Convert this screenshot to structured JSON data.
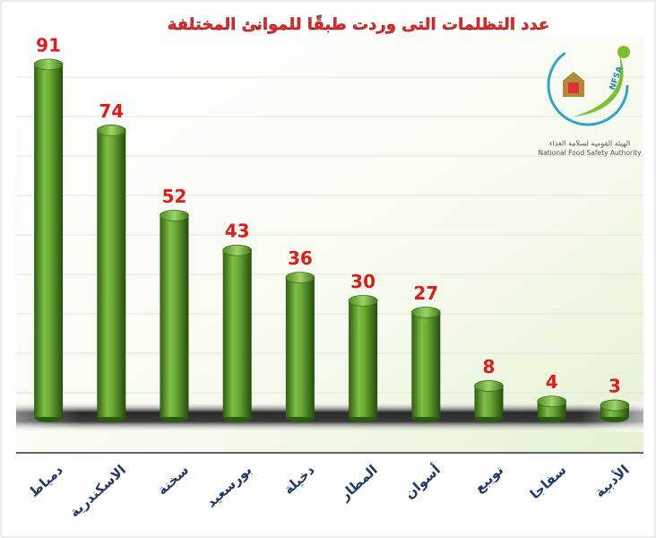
{
  "chart_data": {
    "type": "bar",
    "title": "عدد التظلمات التى وردت طبقًا للموانئ المختلفة",
    "categories": [
      "دمياط",
      "الاسكندرية",
      "سخنة",
      "بورسعيد",
      "دخيلة",
      "المطار",
      "أسوان",
      "نويبع",
      "سفاجا",
      "الأدبية"
    ],
    "values": [
      91,
      74,
      52,
      43,
      36,
      30,
      27,
      8,
      4,
      3
    ],
    "color": "#5a9a2a"
  },
  "logo": {
    "mark": "NFSA",
    "arabic_name": "الهيئة القومية لسلامة الغذاء",
    "english_name": "National Food Safety Authority"
  }
}
